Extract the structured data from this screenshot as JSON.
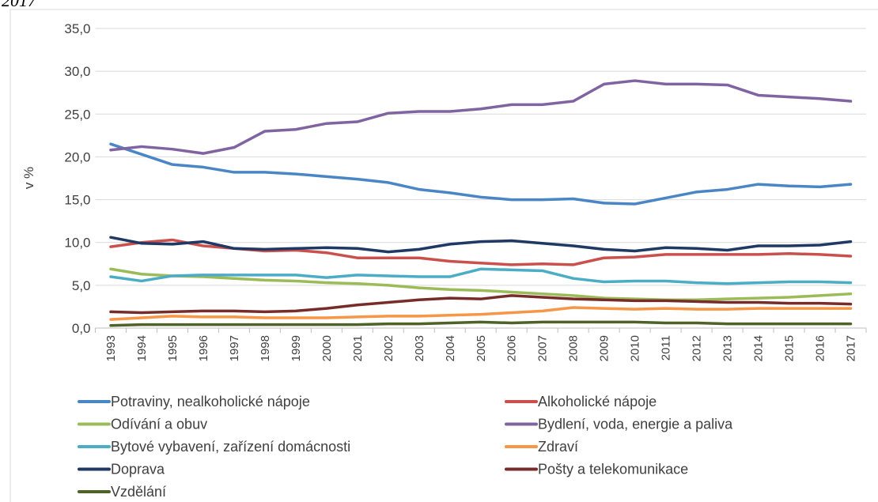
{
  "chart_data": {
    "type": "line",
    "title": "2017",
    "y_label": "v %",
    "categories": [
      "1993",
      "1994",
      "1995",
      "1996",
      "1997",
      "1998",
      "1999",
      "2000",
      "2001",
      "2002",
      "2003",
      "2004",
      "2005",
      "2006",
      "2007",
      "2008",
      "2009",
      "2010",
      "2011",
      "2012",
      "2013",
      "2014",
      "2015",
      "2016",
      "2017"
    ],
    "ylim": [
      0,
      35
    ],
    "yticks": [
      {
        "value": 0,
        "label": "0,0"
      },
      {
        "value": 5,
        "label": "5,0"
      },
      {
        "value": 10,
        "label": "10,0"
      },
      {
        "value": 15,
        "label": "15,0"
      },
      {
        "value": 20,
        "label": "20,0"
      },
      {
        "value": 25,
        "label": "25,0"
      },
      {
        "value": 30,
        "label": "30,0"
      },
      {
        "value": 35,
        "label": "35,0"
      }
    ],
    "grid": true,
    "legend": "bottom",
    "series": [
      {
        "name": "Potraviny, nealkoholické nápoje",
        "color": "#4a86c5",
        "values": [
          21.5,
          20.3,
          19.1,
          18.8,
          18.2,
          18.2,
          18.0,
          17.7,
          17.4,
          17.0,
          16.2,
          15.8,
          15.3,
          15.0,
          15.0,
          15.1,
          14.6,
          14.5,
          15.2,
          15.9,
          16.2,
          16.8,
          16.6,
          16.5,
          16.8
        ]
      },
      {
        "name": "Alkoholické nápoje",
        "color": "#c9504d",
        "values": [
          9.5,
          10.0,
          10.3,
          9.6,
          9.3,
          9.0,
          9.1,
          8.8,
          8.2,
          8.2,
          8.2,
          7.8,
          7.6,
          7.4,
          7.5,
          7.4,
          8.2,
          8.3,
          8.6,
          8.6,
          8.6,
          8.6,
          8.7,
          8.6,
          8.4
        ]
      },
      {
        "name": "Odívání a obuv",
        "color": "#9bbb59",
        "values": [
          6.9,
          6.3,
          6.1,
          6.0,
          5.8,
          5.6,
          5.5,
          5.3,
          5.2,
          5.0,
          4.7,
          4.5,
          4.4,
          4.2,
          4.0,
          3.8,
          3.5,
          3.4,
          3.3,
          3.3,
          3.4,
          3.5,
          3.6,
          3.8,
          4.0
        ]
      },
      {
        "name": "Bydlení, voda, energie a paliva",
        "color": "#8064a2",
        "values": [
          20.8,
          21.2,
          20.9,
          20.4,
          21.1,
          23.0,
          23.2,
          23.9,
          24.1,
          25.1,
          25.3,
          25.3,
          25.6,
          26.1,
          26.1,
          26.5,
          28.5,
          28.9,
          28.5,
          28.5,
          28.4,
          27.2,
          27.0,
          26.8,
          26.5
        ]
      },
      {
        "name": "Bytové vybavení, zařízení domácnosti",
        "color": "#4bacc6",
        "values": [
          6.0,
          5.5,
          6.1,
          6.2,
          6.2,
          6.2,
          6.2,
          5.9,
          6.2,
          6.1,
          6.0,
          6.0,
          6.9,
          6.8,
          6.7,
          5.8,
          5.4,
          5.5,
          5.5,
          5.3,
          5.2,
          5.3,
          5.4,
          5.4,
          5.3
        ]
      },
      {
        "name": "Zdraví",
        "color": "#f79646",
        "values": [
          1.0,
          1.2,
          1.4,
          1.3,
          1.3,
          1.2,
          1.2,
          1.2,
          1.3,
          1.4,
          1.4,
          1.5,
          1.6,
          1.8,
          2.0,
          2.4,
          2.3,
          2.2,
          2.3,
          2.2,
          2.2,
          2.3,
          2.3,
          2.3,
          2.3
        ]
      },
      {
        "name": "Doprava",
        "color": "#1f3864",
        "values": [
          10.6,
          9.9,
          9.8,
          10.1,
          9.3,
          9.2,
          9.3,
          9.4,
          9.3,
          8.9,
          9.2,
          9.8,
          10.1,
          10.2,
          9.9,
          9.6,
          9.2,
          9.0,
          9.4,
          9.3,
          9.1,
          9.6,
          9.6,
          9.7,
          10.1
        ]
      },
      {
        "name": "Pošty a telekomunikace",
        "color": "#772c2a",
        "values": [
          1.9,
          1.8,
          1.9,
          2.0,
          2.0,
          1.9,
          2.0,
          2.3,
          2.7,
          3.0,
          3.3,
          3.5,
          3.4,
          3.8,
          3.6,
          3.4,
          3.3,
          3.2,
          3.2,
          3.1,
          3.0,
          3.0,
          2.9,
          2.9,
          2.8
        ]
      },
      {
        "name": "Vzdělání",
        "color": "#4f6228",
        "values": [
          0.3,
          0.4,
          0.4,
          0.4,
          0.4,
          0.4,
          0.4,
          0.4,
          0.4,
          0.5,
          0.5,
          0.6,
          0.7,
          0.6,
          0.7,
          0.7,
          0.7,
          0.7,
          0.6,
          0.6,
          0.5,
          0.5,
          0.5,
          0.5,
          0.5
        ]
      }
    ]
  }
}
